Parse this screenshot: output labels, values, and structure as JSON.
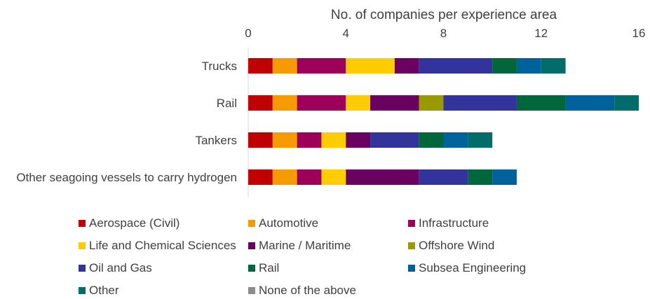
{
  "chart_data": {
    "type": "bar",
    "orientation": "horizontal",
    "stacked": true,
    "title": "",
    "xlabel": "No. of companies per experience area",
    "ylabel": "",
    "xlim": [
      0,
      16
    ],
    "x_ticks": [
      0,
      4,
      8,
      12,
      16
    ],
    "grid": false,
    "legend_position": "bottom",
    "categories": [
      "Trucks",
      "Rail",
      "Tankers",
      "Other seagoing vessels to carry hydrogen"
    ],
    "series": [
      {
        "name": "Aerospace (Civil)",
        "color": "#c00000",
        "values": [
          1,
          1,
          1,
          1
        ]
      },
      {
        "name": "Automotive",
        "color": "#f59b00",
        "values": [
          1,
          1,
          1,
          1
        ]
      },
      {
        "name": "Infrastructure",
        "color": "#9c0058",
        "values": [
          2,
          2,
          1,
          1
        ]
      },
      {
        "name": "Life and Chemical Sciences",
        "color": "#ffcc00",
        "values": [
          2,
          1,
          1,
          1
        ]
      },
      {
        "name": "Marine / Maritime",
        "color": "#6a005f",
        "values": [
          1,
          2,
          1,
          3
        ]
      },
      {
        "name": "Offshore Wind",
        "color": "#999900",
        "values": [
          0,
          1,
          0,
          0
        ]
      },
      {
        "name": "Oil and Gas",
        "color": "#33339c",
        "values": [
          3,
          3,
          2,
          2
        ]
      },
      {
        "name": "Rail",
        "color": "#00663c",
        "values": [
          1,
          2,
          1,
          1
        ]
      },
      {
        "name": "Subsea Engineering",
        "color": "#00629b",
        "values": [
          1,
          2,
          1,
          1
        ]
      },
      {
        "name": "Other",
        "color": "#006d6a",
        "values": [
          1,
          1,
          1,
          0
        ]
      },
      {
        "name": "None of the above",
        "color": "#8c8c8c",
        "values": [
          0,
          0,
          0,
          0
        ]
      }
    ]
  }
}
